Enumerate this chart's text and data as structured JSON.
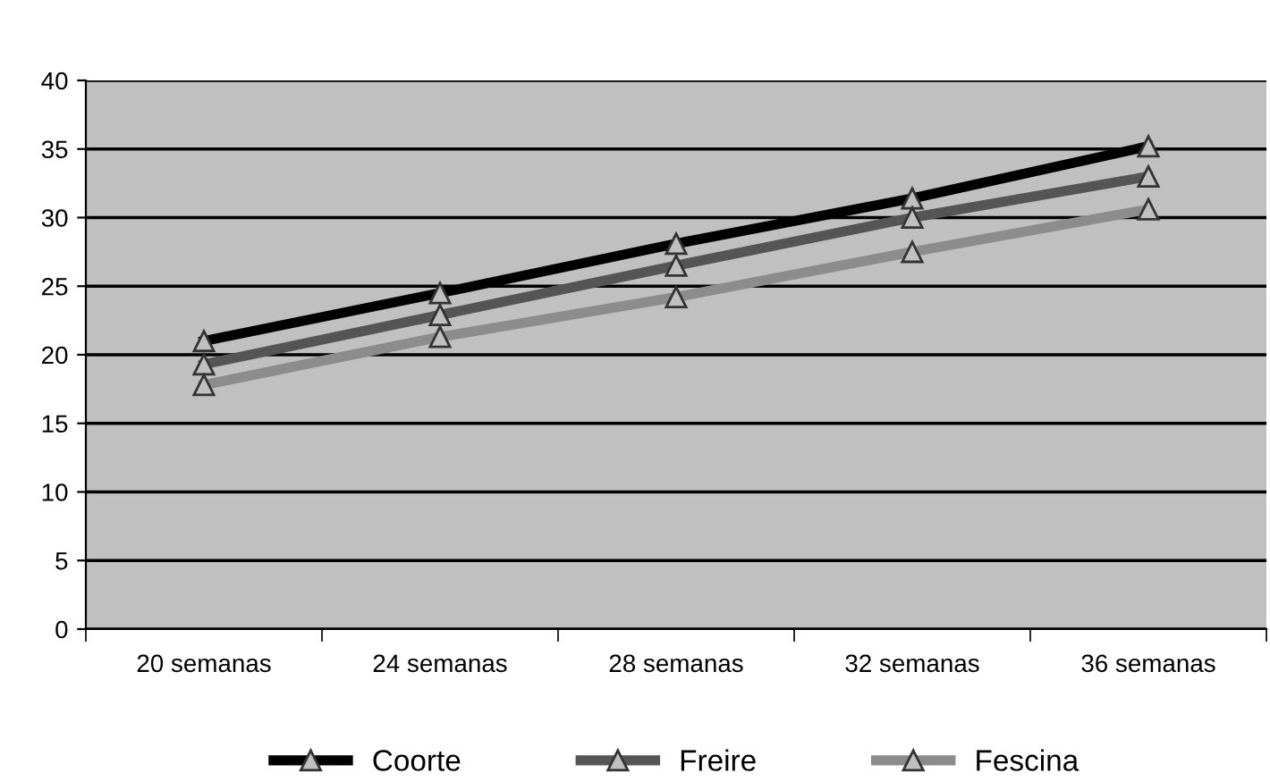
{
  "chart_data": {
    "type": "line",
    "categories": [
      "20 semanas",
      "24 semanas",
      "28 semanas",
      "32 semanas",
      "36 semanas"
    ],
    "series": [
      {
        "name": "Coorte",
        "color": "#000000",
        "values": [
          21,
          24.5,
          28.1,
          31.4,
          35.2
        ]
      },
      {
        "name": "Freire",
        "color": "#555555",
        "values": [
          19.3,
          22.9,
          26.5,
          30,
          33
        ]
      },
      {
        "name": "Fescina",
        "color": "#8c8c8c",
        "values": [
          17.8,
          21.3,
          24.2,
          27.5,
          30.6
        ]
      }
    ],
    "ylim": [
      0,
      40
    ],
    "yticks": [
      0,
      5,
      10,
      15,
      20,
      25,
      30,
      35,
      40
    ],
    "grid": "y",
    "legend": "bottom",
    "marker": "triangle",
    "line_style": "solid"
  }
}
